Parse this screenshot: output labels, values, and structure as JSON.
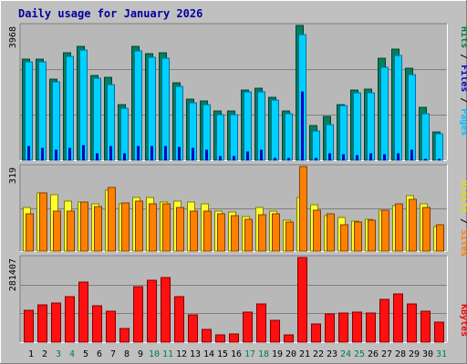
{
  "chart_data": [
    {
      "type": "bar",
      "title": "Daily usage for January 2026",
      "ylabel_max": "3968",
      "legend": [
        "Pages",
        "Files",
        "Hits"
      ],
      "legend_separator": " / ",
      "colors": {
        "hits": "#008040",
        "files": "#00c0ff",
        "pages": "#0000d0"
      },
      "categories": [
        "1",
        "2",
        "3",
        "4",
        "5",
        "6",
        "7",
        "8",
        "9",
        "10",
        "11",
        "12",
        "13",
        "14",
        "15",
        "16",
        "17",
        "18",
        "19",
        "20",
        "21",
        "22",
        "23",
        "24",
        "25",
        "26",
        "27",
        "28",
        "29",
        "30",
        "31"
      ],
      "weekend_days": [
        "3",
        "4",
        "10",
        "11",
        "17",
        "18",
        "24",
        "25",
        "31"
      ],
      "ylim": [
        0,
        3968
      ],
      "series": [
        {
          "name": "Hits",
          "values": [
            2980,
            2980,
            2390,
            3170,
            3350,
            2490,
            2450,
            1640,
            3350,
            3150,
            3160,
            2280,
            1790,
            1730,
            1440,
            1440,
            2070,
            2130,
            1840,
            1460,
            3968,
            1020,
            1300,
            1630,
            2070,
            2080,
            3010,
            3280,
            2710,
            1560,
            820
          ]
        },
        {
          "name": "Files",
          "values": [
            2900,
            2900,
            2300,
            3050,
            3250,
            2410,
            2220,
            1530,
            3230,
            3020,
            2990,
            2170,
            1700,
            1640,
            1330,
            1330,
            2000,
            2000,
            1770,
            1380,
            3700,
            860,
            1050,
            1610,
            1990,
            1990,
            2730,
            3070,
            2530,
            1370,
            770
          ]
        },
        {
          "name": "Pages",
          "values": [
            400,
            350,
            300,
            360,
            420,
            200,
            400,
            200,
            400,
            400,
            400,
            380,
            350,
            300,
            100,
            100,
            250,
            300,
            50,
            60,
            2000,
            50,
            200,
            150,
            130,
            200,
            150,
            200,
            300,
            40,
            30
          ]
        }
      ]
    },
    {
      "type": "bar",
      "ylabel_max": "319",
      "legend": [
        "Sites",
        "Visits"
      ],
      "legend_separator": " / ",
      "colors": {
        "visits": "#ffff00",
        "sites": "#ff8000"
      },
      "categories": [
        "1",
        "2",
        "3",
        "4",
        "5",
        "6",
        "7",
        "8",
        "9",
        "10",
        "11",
        "12",
        "13",
        "14",
        "15",
        "16",
        "17",
        "18",
        "19",
        "20",
        "21",
        "22",
        "23",
        "24",
        "25",
        "26",
        "27",
        "28",
        "29",
        "30",
        "31"
      ],
      "ylim": [
        0,
        319
      ],
      "series": [
        {
          "name": "Visits",
          "values": [
            163,
            218,
            213,
            190,
            186,
            177,
            229,
            179,
            204,
            204,
            185,
            188,
            185,
            178,
            151,
            147,
            129,
            163,
            151,
            118,
            201,
            176,
            135,
            126,
            113,
            119,
            155,
            171,
            208,
            180,
            94
          ]
        },
        {
          "name": "Sites",
          "values": [
            139,
            218,
            152,
            151,
            184,
            167,
            241,
            182,
            189,
            177,
            180,
            165,
            150,
            152,
            142,
            133,
            120,
            138,
            142,
            110,
            319,
            156,
            142,
            98,
            109,
            115,
            153,
            177,
            195,
            164,
            99
          ]
        }
      ]
    },
    {
      "type": "bar",
      "ylabel_max": "281407",
      "legend": [
        "KBytes"
      ],
      "colors": {
        "kbytes": "#ff0000"
      },
      "categories": [
        "1",
        "2",
        "3",
        "4",
        "5",
        "6",
        "7",
        "8",
        "9",
        "10",
        "11",
        "12",
        "13",
        "14",
        "15",
        "16",
        "17",
        "18",
        "19",
        "20",
        "21",
        "22",
        "23",
        "24",
        "25",
        "26",
        "27",
        "28",
        "29",
        "30",
        "31"
      ],
      "ylim": [
        0,
        281407
      ],
      "series": [
        {
          "name": "KBytes",
          "values": [
            105000,
            125000,
            130000,
            150000,
            201000,
            122000,
            102000,
            45000,
            185000,
            205000,
            215000,
            150000,
            91000,
            43000,
            25000,
            28000,
            101000,
            128000,
            72000,
            24000,
            281407,
            61000,
            94000,
            98000,
            101000,
            98000,
            142000,
            160000,
            126000,
            102000,
            66000
          ]
        }
      ]
    }
  ]
}
